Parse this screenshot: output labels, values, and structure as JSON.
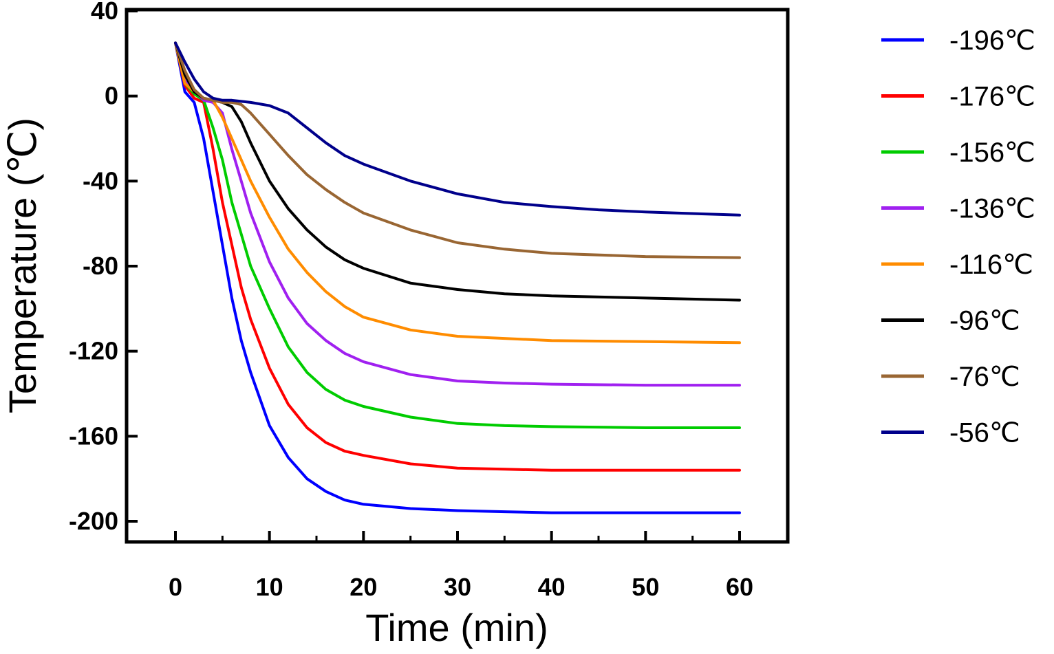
{
  "chart_data": {
    "type": "line",
    "xlabel": "Time (min)",
    "ylabel": "Temperature (℃)",
    "xlim": [
      -5,
      65
    ],
    "ylim": [
      -210,
      40
    ],
    "xticks": [
      0,
      10,
      20,
      30,
      40,
      50,
      60
    ],
    "xtick_labels": [
      "0",
      "10",
      "20",
      "30",
      "40",
      "50",
      "60"
    ],
    "yticks": [
      40,
      0,
      -40,
      -80,
      -120,
      -160,
      -200
    ],
    "ytick_labels": [
      "40",
      "0",
      "-40",
      "-80",
      "-120",
      "-160",
      "-200"
    ],
    "grid": false,
    "legend_position": "right",
    "series": [
      {
        "name": "-196℃",
        "color": "#0000ff",
        "x": [
          0,
          1,
          2,
          3,
          4,
          5,
          6,
          7,
          8,
          10,
          12,
          14,
          16,
          18,
          20,
          25,
          30,
          35,
          40,
          50,
          60
        ],
        "y": [
          25,
          2,
          -3,
          -20,
          -45,
          -70,
          -95,
          -115,
          -130,
          -155,
          -170,
          -180,
          -186,
          -190,
          -192,
          -194,
          -195,
          -195.5,
          -196,
          -196,
          -196
        ]
      },
      {
        "name": "-176℃",
        "color": "#ff0000",
        "x": [
          0,
          1,
          2,
          3,
          4,
          5,
          6,
          7,
          8,
          10,
          12,
          14,
          16,
          18,
          20,
          25,
          30,
          35,
          40,
          50,
          60
        ],
        "y": [
          25,
          5,
          -1,
          -3,
          -25,
          -50,
          -70,
          -90,
          -105,
          -128,
          -145,
          -156,
          -163,
          -167,
          -169,
          -173,
          -175,
          -175.5,
          -176,
          -176,
          -176
        ]
      },
      {
        "name": "-156℃",
        "color": "#00cc00",
        "x": [
          0,
          1,
          2,
          3,
          4,
          5,
          6,
          7,
          8,
          10,
          12,
          14,
          16,
          18,
          20,
          25,
          30,
          35,
          40,
          50,
          60
        ],
        "y": [
          25,
          6,
          1,
          -2,
          -15,
          -30,
          -50,
          -65,
          -80,
          -100,
          -118,
          -130,
          -138,
          -143,
          -146,
          -151,
          -154,
          -155,
          -155.5,
          -156,
          -156
        ]
      },
      {
        "name": "-136℃",
        "color": "#a020f0",
        "x": [
          0,
          1,
          2,
          3,
          4,
          5,
          6,
          7,
          8,
          10,
          12,
          14,
          16,
          18,
          20,
          25,
          30,
          35,
          40,
          50,
          60
        ],
        "y": [
          25,
          7,
          3,
          -2,
          -3,
          -8,
          -25,
          -40,
          -55,
          -78,
          -95,
          -107,
          -115,
          -121,
          -125,
          -131,
          -134,
          -135,
          -135.5,
          -136,
          -136
        ]
      },
      {
        "name": "-116℃",
        "color": "#ff8c00",
        "x": [
          0,
          1,
          2,
          3,
          4,
          5,
          6,
          7,
          8,
          10,
          12,
          14,
          16,
          18,
          20,
          25,
          30,
          35,
          40,
          50,
          60
        ],
        "y": [
          25,
          6,
          2,
          -1,
          -2,
          -10,
          -20,
          -30,
          -40,
          -57,
          -72,
          -83,
          -92,
          -99,
          -104,
          -110,
          -113,
          -114,
          -115,
          -115.5,
          -116
        ]
      },
      {
        "name": "-96℃",
        "color": "#000000",
        "x": [
          0,
          1,
          2,
          3,
          4,
          5,
          6,
          7,
          8,
          10,
          12,
          14,
          16,
          18,
          20,
          25,
          30,
          35,
          40,
          50,
          60
        ],
        "y": [
          25,
          10,
          2,
          -1,
          -2,
          -3,
          -5,
          -12,
          -22,
          -40,
          -53,
          -63,
          -71,
          -77,
          -81,
          -88,
          -91,
          -93,
          -94,
          -95,
          -96
        ]
      },
      {
        "name": "-76℃",
        "color": "#996633",
        "x": [
          0,
          1,
          2,
          3,
          4,
          5,
          6,
          7,
          8,
          10,
          12,
          14,
          16,
          18,
          20,
          25,
          30,
          35,
          40,
          50,
          60
        ],
        "y": [
          25,
          12,
          3,
          -1,
          -2,
          -3,
          -3,
          -4,
          -8,
          -18,
          -28,
          -37,
          -44,
          -50,
          -55,
          -63,
          -69,
          -72,
          -74,
          -75.5,
          -76
        ]
      },
      {
        "name": "-56℃",
        "color": "#00008b",
        "x": [
          0,
          1,
          2,
          3,
          4,
          5,
          6,
          7,
          8,
          10,
          12,
          14,
          16,
          18,
          20,
          25,
          30,
          35,
          40,
          45,
          50,
          60
        ],
        "y": [
          25,
          16,
          8,
          2,
          -1,
          -2,
          -2,
          -2.5,
          -3,
          -4.5,
          -8,
          -15,
          -22,
          -28,
          -32,
          -40,
          -46,
          -50,
          -52,
          -53.5,
          -54.5,
          -56
        ]
      }
    ]
  }
}
